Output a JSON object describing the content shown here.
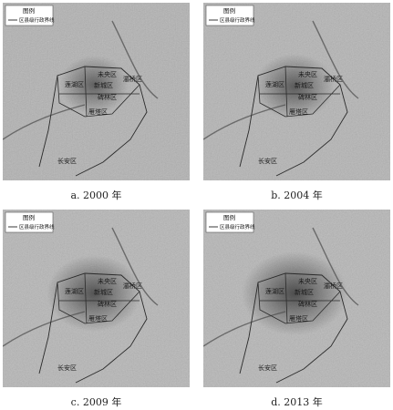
{
  "legend": {
    "title": "图例",
    "label": "区县级行政界线"
  },
  "panels": [
    {
      "caption": "a. 2000 年",
      "year": 2000,
      "labels": {
        "weiyang": "未央区",
        "xincheng": "新城区",
        "lianhu": "莲湖区",
        "baqiao": "灞桥区",
        "beilin": "碑林区",
        "yanta": "雁塔区",
        "changan": "长安区"
      }
    },
    {
      "caption": "b. 2004 年",
      "year": 2004,
      "labels": {
        "weiyang": "未央区",
        "xincheng": "新城区",
        "lianhu": "莲湖区",
        "baqiao": "灞桥区",
        "beilin": "碑林区",
        "yanta": "雁塔区",
        "changan": "长安区"
      }
    },
    {
      "caption": "c. 2009 年",
      "year": 2009,
      "labels": {
        "weiyang": "未央区",
        "xincheng": "新城区",
        "lianhu": "莲湖区",
        "baqiao": "灞桥区",
        "beilin": "碑林区",
        "yanta": "雁塔区",
        "changan": "长安区"
      }
    },
    {
      "caption": "d. 2013 年",
      "year": 2013,
      "labels": {
        "weiyang": "未央区",
        "xincheng": "新城区",
        "lianhu": "莲湖区",
        "baqiao": "灞桥区",
        "beilin": "碑林区",
        "yanta": "雁塔区",
        "changan": "长安区"
      }
    }
  ],
  "colors": {
    "base": "#b4b4b4",
    "urban": "#333333",
    "boundary": "#2a2a2a",
    "river": "#4a4a4a"
  }
}
